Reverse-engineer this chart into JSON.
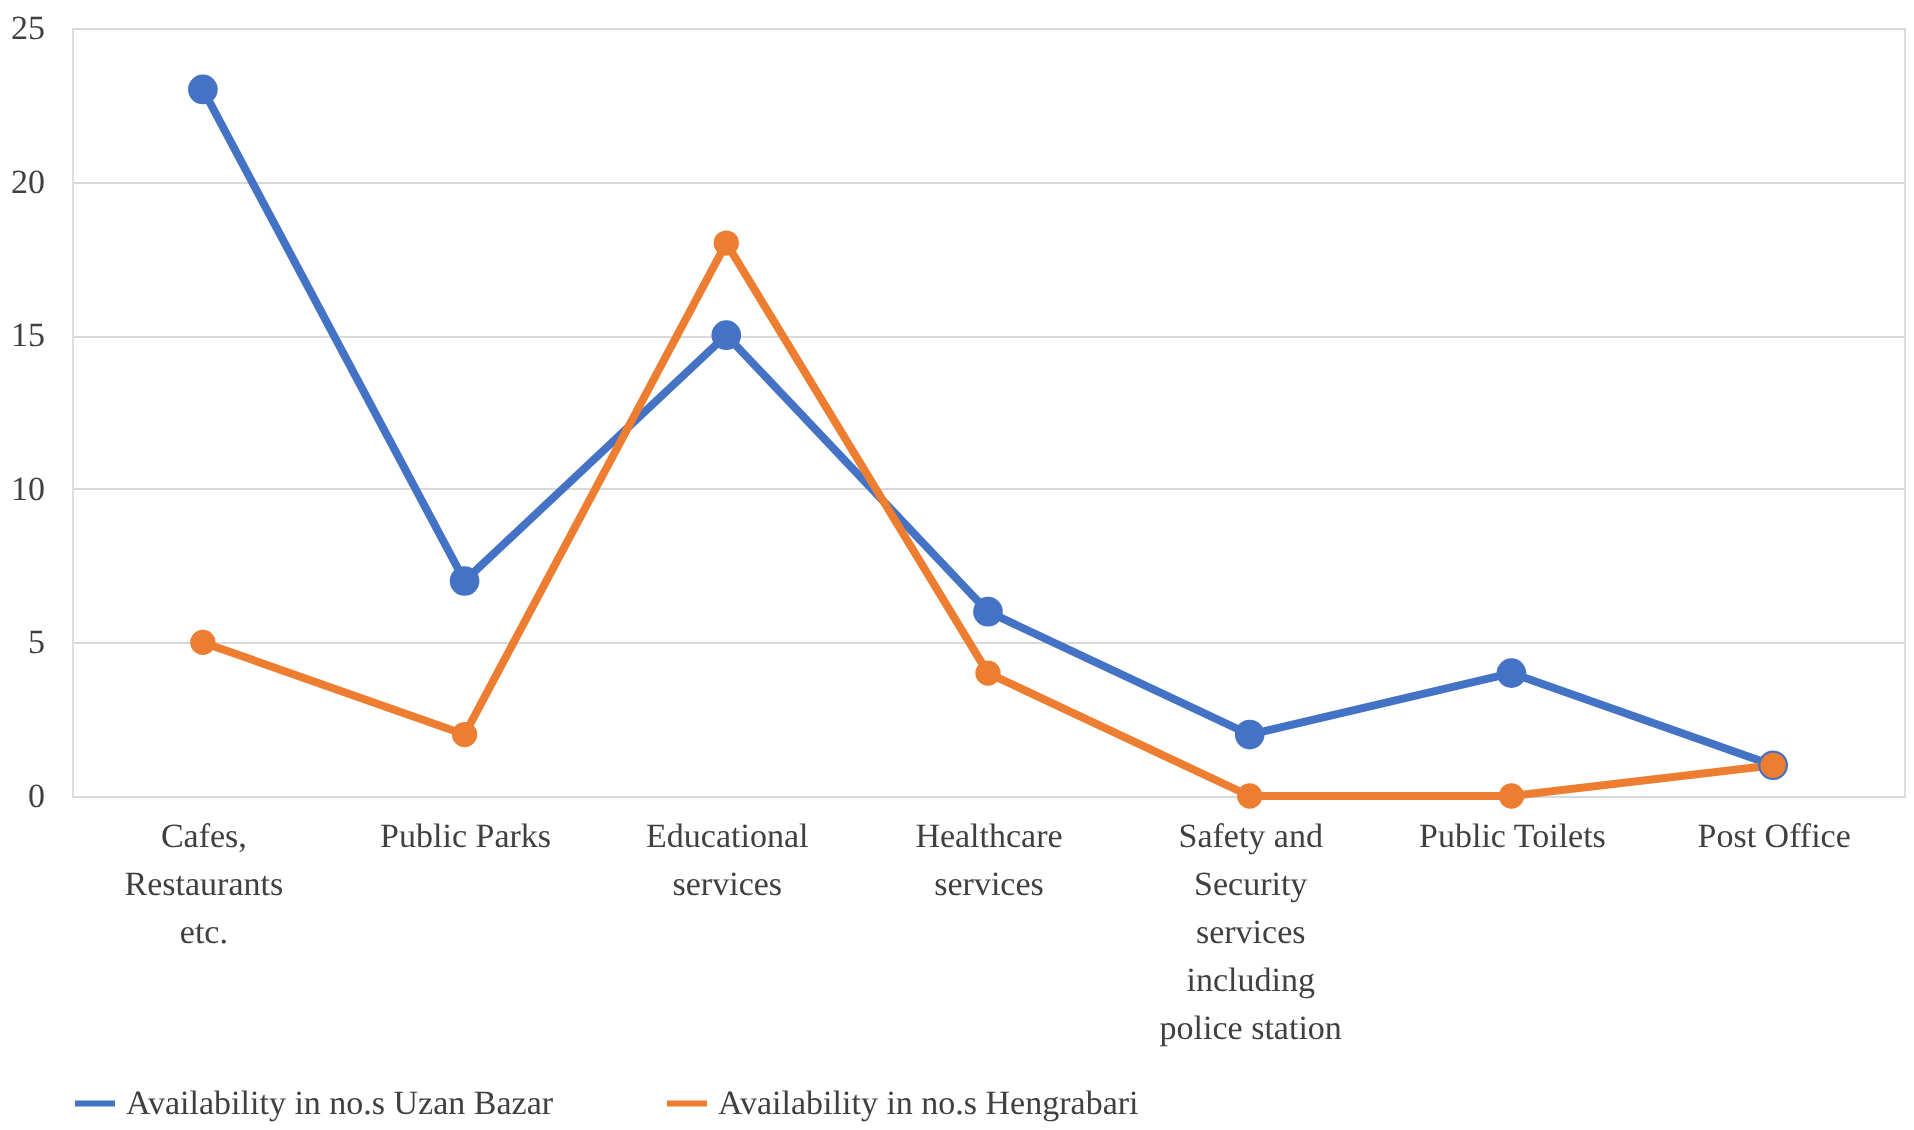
{
  "chart_data": {
    "type": "line",
    "categories": [
      "Cafes, Restaurants etc.",
      "Public Parks",
      "Educational services",
      "Healthcare services",
      "Safety and Security services including police station",
      "Public Toilets",
      "Post Office"
    ],
    "series": [
      {
        "name": "Availability in no.s Uzan Bazar",
        "color": "#4472c4",
        "values": [
          23,
          7,
          15,
          6,
          2,
          4,
          1
        ]
      },
      {
        "name": "Availability in no.s Hengrabari",
        "color": "#ed7d31",
        "values": [
          5,
          2,
          18,
          4,
          0,
          0,
          1
        ]
      }
    ],
    "ylim": [
      0,
      25
    ],
    "yticks": [
      0,
      5,
      10,
      15,
      20,
      25
    ],
    "grid": "y",
    "legend": "bottom",
    "marker": "circle",
    "line_style": "solid"
  }
}
